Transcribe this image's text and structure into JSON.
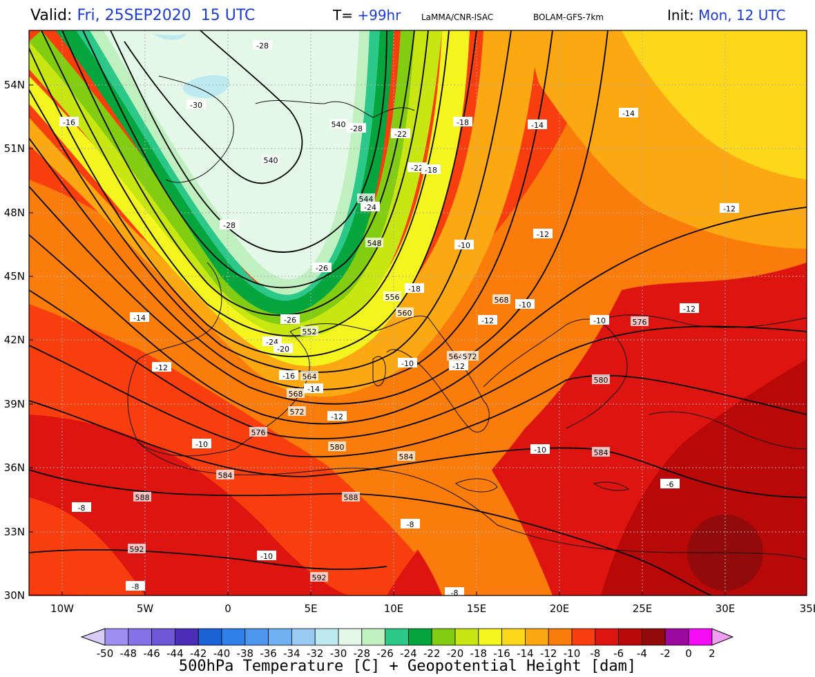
{
  "header": {
    "valid_label": "Valid:",
    "valid_value": "Fri, 25SEP2020  15 UTC",
    "forecast_label": "T=",
    "forecast_value": "+99hr",
    "source": "LaMMA/CNR-ISAC",
    "model": "BOLAM-GFS-7km",
    "init_label": "Init:",
    "init_value": "Mon, 12 UTC"
  },
  "axes": {
    "lat_labels": [
      "54N",
      "51N",
      "48N",
      "45N",
      "42N",
      "39N",
      "36N",
      "33N",
      "30N"
    ],
    "lon_labels": [
      "10W",
      "5W",
      "0",
      "5E",
      "10E",
      "15E",
      "20E",
      "25E",
      "30E",
      "35E"
    ],
    "grid": "dotted"
  },
  "colorbar": {
    "labels": [
      "-50",
      "-48",
      "-46",
      "-44",
      "-42",
      "-40",
      "-38",
      "-36",
      "-34",
      "-32",
      "-30",
      "-28",
      "-26",
      "-24",
      "-22",
      "-20",
      "-18",
      "-16",
      "-14",
      "-12",
      "-10",
      "-8",
      "-6",
      "-4",
      "-2",
      "0",
      "2"
    ],
    "colors": [
      "#9e8ef2",
      "#8672e8",
      "#6e58d8",
      "#4b2fb8",
      "#1a62d6",
      "#2f80e8",
      "#4d98ee",
      "#6fb0f2",
      "#98caf4",
      "#bdeaf0",
      "#e4f8ea",
      "#c0f0c0",
      "#2bc88a",
      "#07a53e",
      "#82cc12",
      "#c8e612",
      "#f4f41e",
      "#fcd71a",
      "#fca812",
      "#fa7c0a",
      "#f83e0e",
      "#de1410",
      "#b80808",
      "#930a0a",
      "#9c0aa0",
      "#f40cf4"
    ],
    "under_color": "#d8ccf6",
    "over_color": "#f09cf0",
    "title": "500hPa Temperature [C] + Geopotential Height [dam]"
  },
  "contour_labels": {
    "geopotential_dam": [
      "540",
      "540",
      "544",
      "548",
      "552",
      "556",
      "560",
      "564",
      "564",
      "568",
      "568",
      "572",
      "572",
      "576",
      "576",
      "580",
      "580",
      "584",
      "584",
      "584",
      "588",
      "588",
      "592",
      "592"
    ],
    "temperature_c": [
      "-28",
      "-30",
      "-28",
      "-28",
      "-26",
      "-26",
      "-24",
      "-24",
      "-22",
      "-20",
      "-22",
      "-18",
      "-18",
      "-18",
      "-16",
      "-16",
      "-14",
      "-14",
      "-14",
      "-14",
      "-12",
      "-12",
      "-12",
      "-12",
      "-12",
      "-12",
      "-12",
      "-10",
      "-10",
      "-10",
      "-10",
      "-10",
      "-10",
      "-8",
      "-8",
      "-8",
      "-6",
      "-8",
      "-10"
    ]
  }
}
